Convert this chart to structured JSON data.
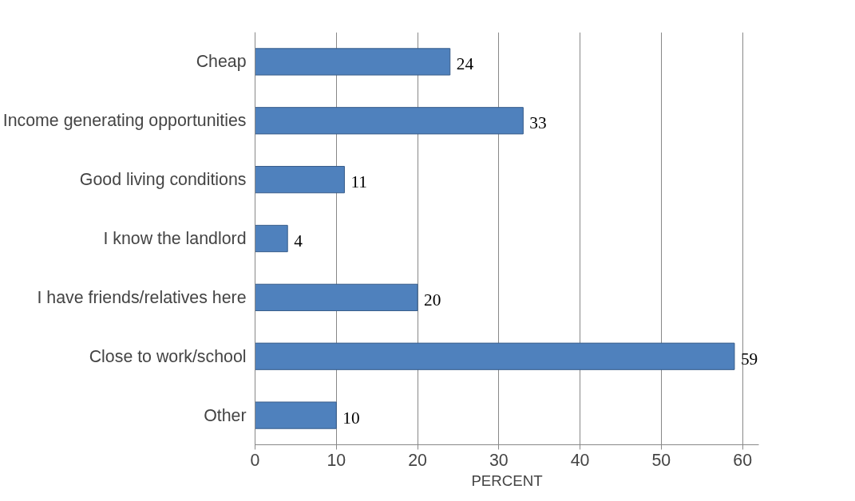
{
  "chart_data": {
    "type": "bar",
    "orientation": "horizontal",
    "xlabel": "PERCENT",
    "categories": [
      "Cheap",
      "Income generating opportunities",
      "Good living conditions",
      "I know the landlord",
      "I have friends/relatives here",
      "Close to work/school",
      "Other"
    ],
    "values": [
      24,
      33,
      11,
      4,
      20,
      59,
      10
    ],
    "color": "#4f81bd",
    "xlim": [
      0,
      62
    ],
    "xticks": [
      0,
      10,
      20,
      30,
      40,
      50,
      60
    ],
    "grid": "x",
    "data_labels": true
  }
}
